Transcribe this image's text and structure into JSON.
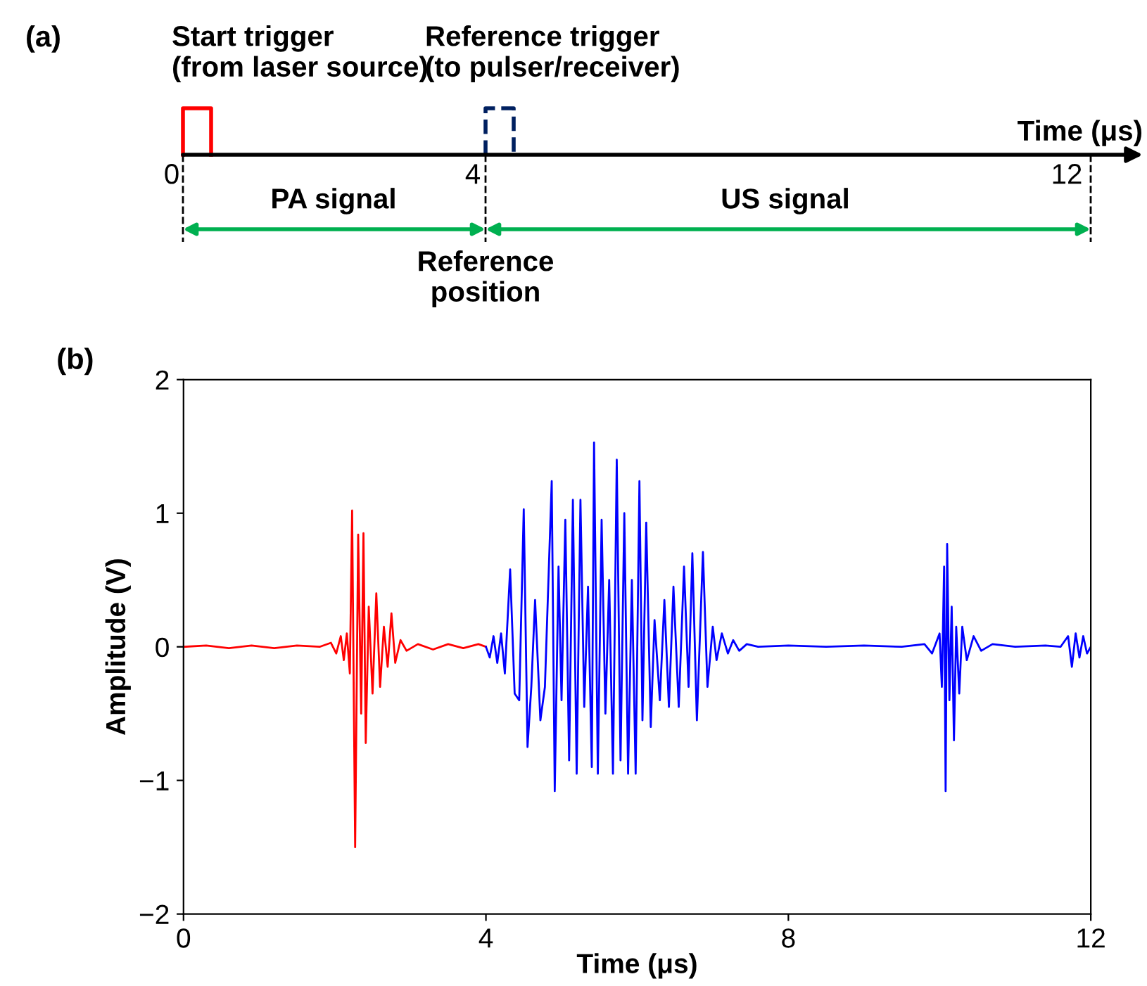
{
  "chart_data": [
    {
      "type": "other",
      "title": "(a)",
      "annotations": [
        "Start trigger\n(from laser source)",
        "Reference trigger\n(to pulser/receiver)",
        "Time (μs)",
        "0",
        "4",
        "12",
        "PA signal",
        "US signal",
        "Reference\nposition"
      ]
    },
    {
      "type": "line",
      "title": "(b)",
      "xlabel": "Time (μs)",
      "ylabel": "Amplitude (V)",
      "xlim": [
        0,
        12
      ],
      "ylim": [
        -2,
        2
      ],
      "xticks": [
        0,
        4,
        8,
        12
      ],
      "yticks": [
        -2,
        -1,
        0,
        1,
        2
      ],
      "grid": false,
      "legend": false,
      "series": [
        {
          "color": "#ff0000",
          "x": [
            0,
            0.3,
            0.6,
            0.9,
            1.2,
            1.5,
            1.8,
            1.95,
            2.02,
            2.08,
            2.12,
            2.16,
            2.2,
            2.23,
            2.27,
            2.31,
            2.35,
            2.38,
            2.41,
            2.45,
            2.5,
            2.55,
            2.6,
            2.65,
            2.7,
            2.75,
            2.8,
            2.87,
            2.95,
            3.1,
            3.3,
            3.5,
            3.7,
            3.9,
            4.0
          ],
          "values": [
            0,
            0.01,
            -0.01,
            0.01,
            -0.01,
            0.01,
            0,
            0.03,
            -0.05,
            0.08,
            -0.1,
            0.1,
            -0.2,
            1.02,
            -1.5,
            0.84,
            -0.5,
            0.85,
            -0.72,
            0.3,
            -0.35,
            0.4,
            -0.3,
            0.15,
            -0.15,
            0.25,
            -0.12,
            0.05,
            -0.03,
            0.02,
            -0.02,
            0.02,
            -0.01,
            0.02,
            0
          ]
        },
        {
          "color": "#0000ff",
          "x": [
            4.0,
            4.05,
            4.1,
            4.15,
            4.2,
            4.25,
            4.32,
            4.38,
            4.44,
            4.5,
            4.55,
            4.6,
            4.65,
            4.72,
            4.78,
            4.87,
            4.91,
            4.96,
            5.0,
            5.05,
            5.1,
            5.15,
            5.2,
            5.25,
            5.3,
            5.35,
            5.4,
            5.43,
            5.48,
            5.53,
            5.58,
            5.63,
            5.68,
            5.73,
            5.78,
            5.83,
            5.88,
            5.93,
            5.98,
            6.03,
            6.07,
            6.12,
            6.18,
            6.23,
            6.3,
            6.36,
            6.42,
            6.48,
            6.55,
            6.62,
            6.68,
            6.73,
            6.79,
            6.87,
            6.93,
            7.0,
            7.05,
            7.12,
            7.2,
            7.27,
            7.35,
            7.45,
            7.6,
            8.0,
            8.5,
            9.0,
            9.5,
            9.8,
            9.9,
            10.0,
            10.03,
            10.06,
            10.08,
            10.1,
            10.13,
            10.16,
            10.19,
            10.22,
            10.26,
            10.3,
            10.36,
            10.45,
            10.55,
            10.7,
            11.0,
            11.4,
            11.6,
            11.7,
            11.75,
            11.8,
            11.85,
            11.9,
            11.95,
            12.0
          ],
          "values": [
            0,
            -0.08,
            0.08,
            -0.12,
            0.1,
            -0.2,
            0.58,
            -0.35,
            -0.4,
            1.03,
            -0.75,
            -0.3,
            0.35,
            -0.55,
            -0.3,
            1.24,
            -1.08,
            0.6,
            -0.4,
            0.95,
            -0.85,
            1.1,
            -0.95,
            1.1,
            -0.45,
            0.45,
            -0.9,
            1.53,
            -0.95,
            0.95,
            -0.5,
            0.5,
            -0.95,
            1.4,
            -0.85,
            1.0,
            -0.95,
            0.5,
            -0.95,
            1.24,
            -0.55,
            0.93,
            -0.6,
            0.2,
            -0.4,
            0.35,
            -0.45,
            0.45,
            -0.45,
            0.6,
            -0.3,
            0.7,
            -0.55,
            0.71,
            -0.3,
            0.15,
            -0.1,
            0.1,
            -0.05,
            0.05,
            -0.03,
            0.02,
            0,
            0.01,
            0,
            0.01,
            0,
            0.02,
            -0.05,
            0.1,
            -0.3,
            0.6,
            -1.08,
            0.77,
            -0.4,
            0.3,
            -0.7,
            0.15,
            -0.35,
            0.15,
            -0.1,
            0.08,
            -0.03,
            0.02,
            0,
            0.01,
            0,
            0.08,
            -0.15,
            0.1,
            -0.08,
            0.08,
            -0.05,
            0
          ]
        }
      ]
    }
  ]
}
